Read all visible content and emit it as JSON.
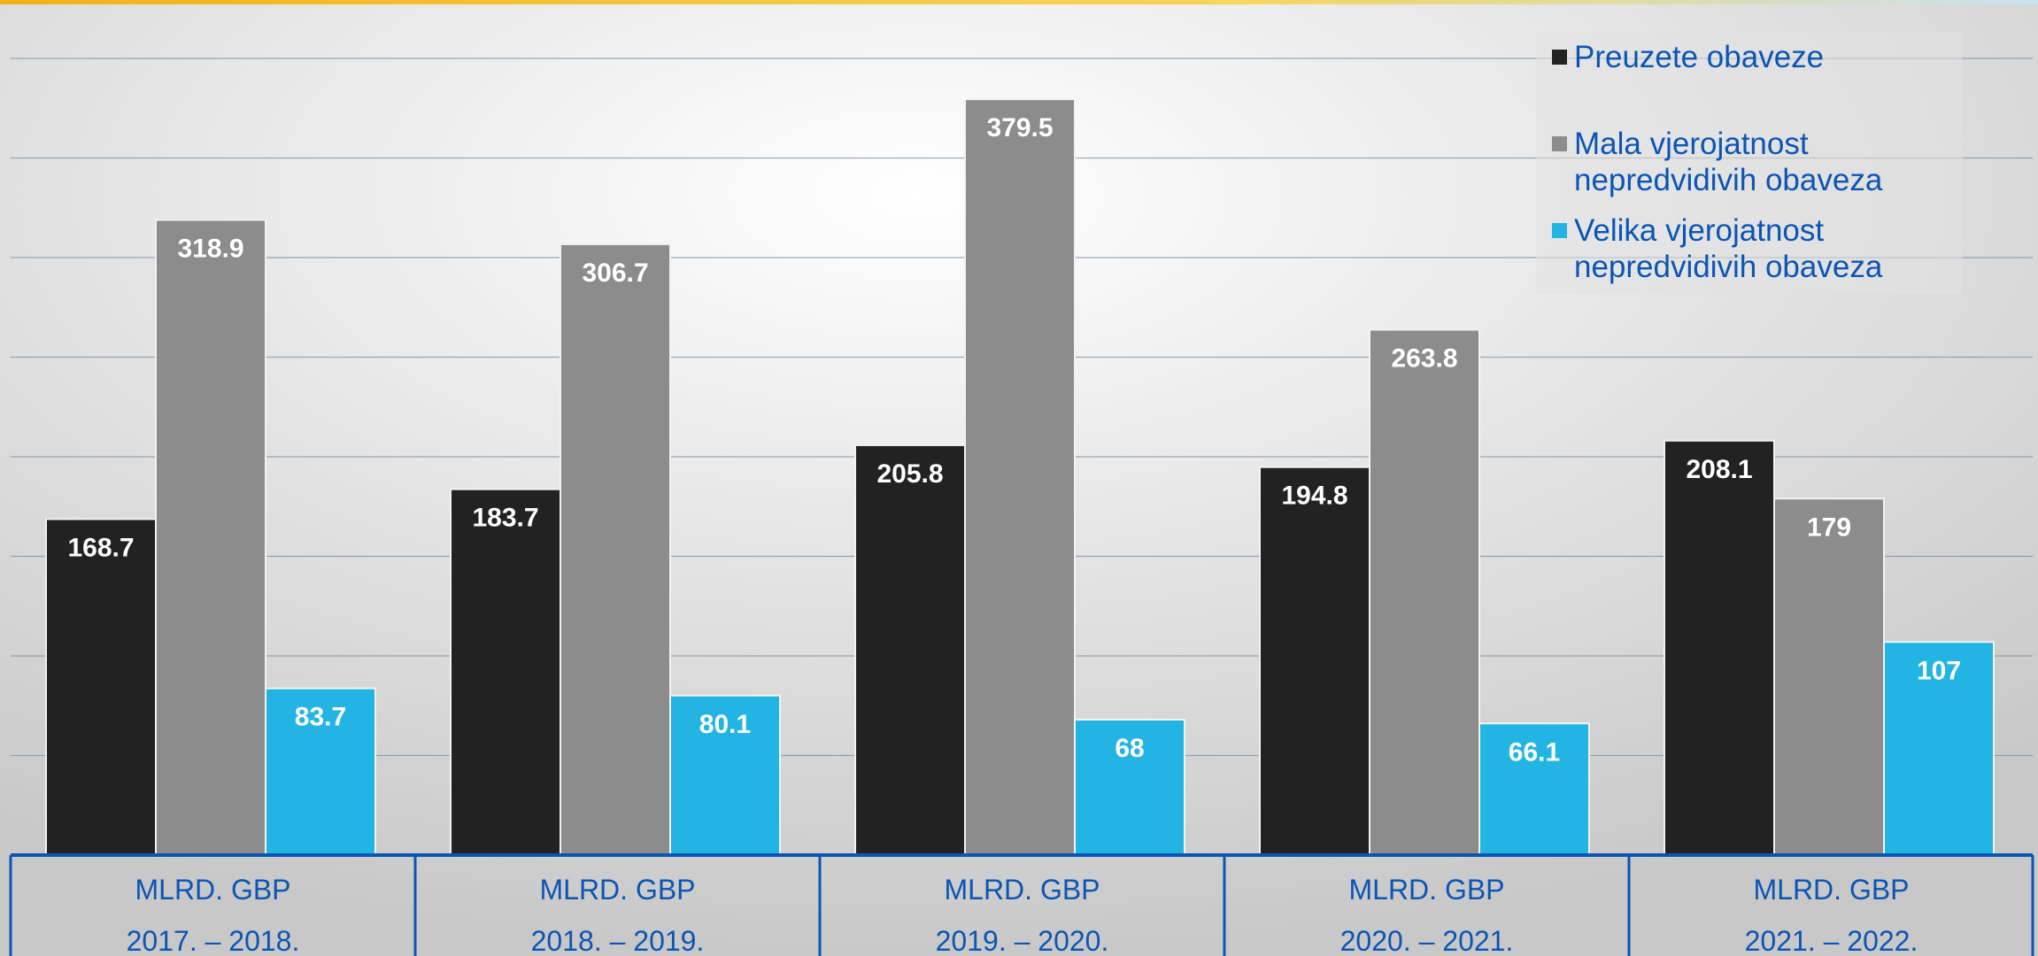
{
  "chart_data": {
    "type": "bar",
    "categories": [
      [
        "MLRD. GBP",
        "2017. – 2018."
      ],
      [
        "MLRD. GBP",
        "2018. – 2019."
      ],
      [
        "MLRD. GBP",
        "2019. – 2020."
      ],
      [
        "MLRD. GBP",
        "2020. – 2021."
      ],
      [
        "MLRD. GBP",
        "2021. – 2022."
      ]
    ],
    "series": [
      {
        "name": "Preuzete obaveze",
        "color": "#222222",
        "values": [
          168.7,
          183.7,
          205.8,
          194.8,
          208.1
        ]
      },
      {
        "name": "Mala vjerojatnost nepredvidivih obaveza",
        "color": "#8c8c8c",
        "values": [
          318.9,
          306.7,
          379.5,
          263.8,
          179
        ]
      },
      {
        "name": "Velika vjerojatnost nepredvidivih obaveza",
        "color": "#22b4e3",
        "values": [
          83.7,
          80.1,
          68,
          66.1,
          107
        ]
      }
    ],
    "title": "",
    "xlabel": "",
    "ylabel": "",
    "ylim": [
      0,
      400
    ],
    "grid": true,
    "legend": "top-right",
    "data_labels": true,
    "axis_color": "#0b55b5"
  }
}
